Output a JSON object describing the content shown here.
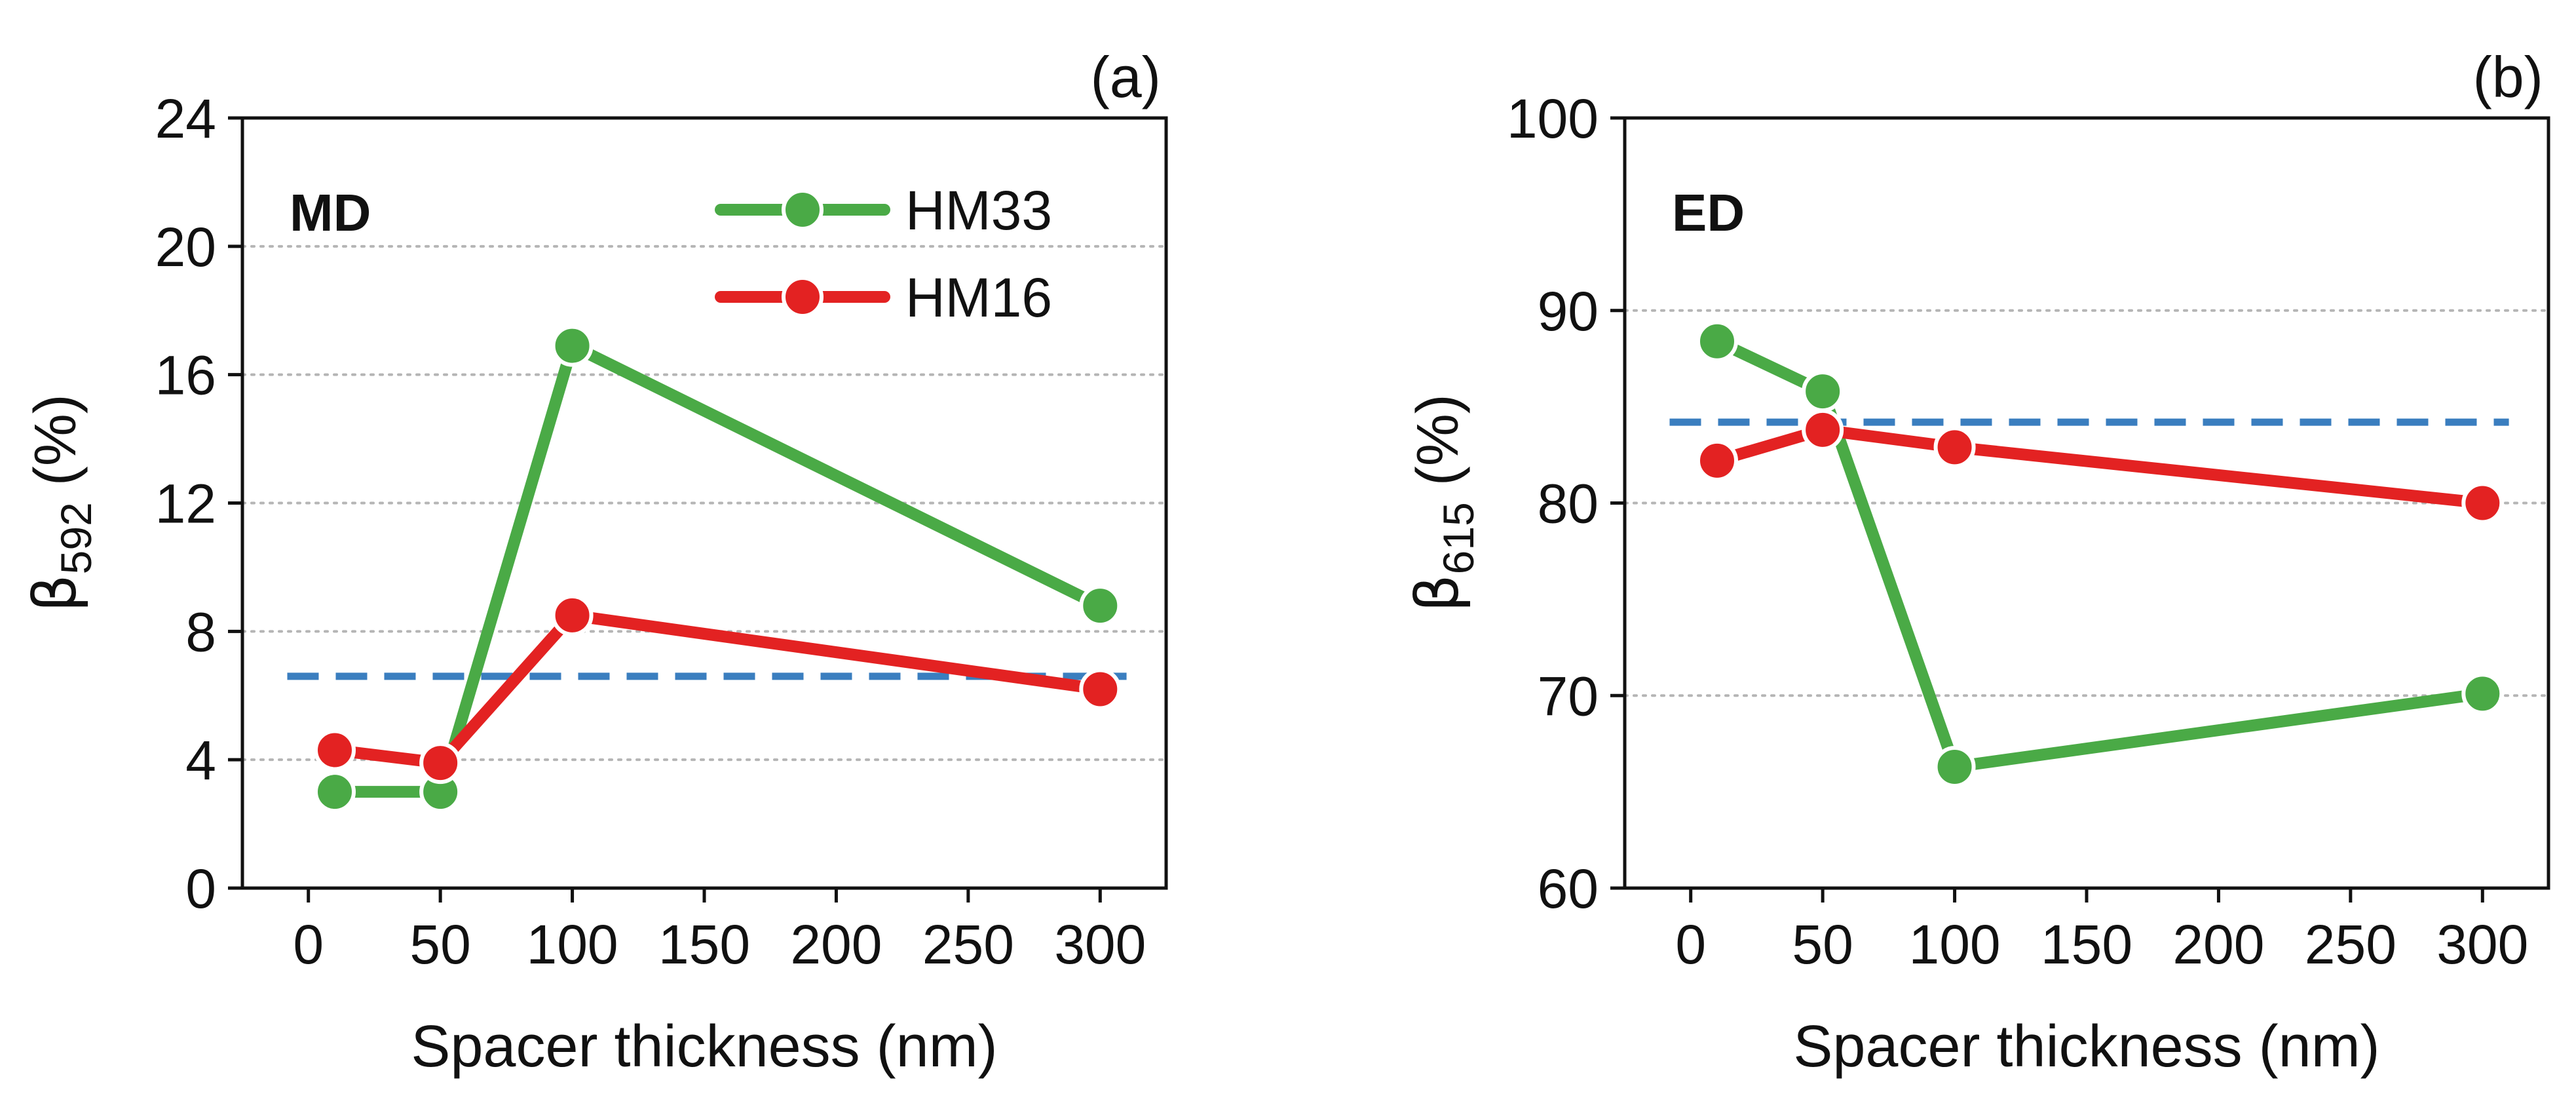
{
  "chart_data": [
    {
      "type": "line",
      "panel_tag": "(a)",
      "inner_label": "MD",
      "xlabel": "Spacer thickness (nm)",
      "ylabel": {
        "symbol": "β",
        "subscript": "592",
        "unit": " (%)"
      },
      "xlim": [
        -25,
        325
      ],
      "ylim": [
        0,
        24
      ],
      "xticks": [
        0,
        50,
        100,
        150,
        200,
        250,
        300
      ],
      "yticks": [
        0,
        4,
        8,
        12,
        16,
        20,
        24
      ],
      "grid": "horizontal dotted",
      "legend_position": "top-right",
      "reference_line": {
        "y": 6.6,
        "style": "dashed",
        "color": "#3a7ebf"
      },
      "series": [
        {
          "name": "HM33",
          "color": "#4aaa46",
          "x": [
            10,
            50,
            100,
            300
          ],
          "y": [
            3.0,
            3.0,
            16.9,
            8.8
          ]
        },
        {
          "name": "HM16",
          "color": "#e32222",
          "x": [
            10,
            50,
            100,
            300
          ],
          "y": [
            4.3,
            3.9,
            8.5,
            6.2
          ]
        }
      ]
    },
    {
      "type": "line",
      "panel_tag": "(b)",
      "inner_label": "ED",
      "xlabel": "Spacer thickness (nm)",
      "ylabel": {
        "symbol": "β",
        "subscript": "615",
        "unit": " (%)"
      },
      "xlim": [
        -25,
        325
      ],
      "ylim": [
        60,
        100
      ],
      "xticks": [
        0,
        50,
        100,
        150,
        200,
        250,
        300
      ],
      "yticks": [
        60,
        70,
        80,
        90,
        100
      ],
      "grid": "horizontal dotted",
      "reference_line": {
        "y": 84.2,
        "style": "dashed",
        "color": "#3a7ebf"
      },
      "series": [
        {
          "name": "HM33",
          "color": "#4aaa46",
          "x": [
            10,
            50,
            100,
            300
          ],
          "y": [
            88.4,
            85.8,
            66.3,
            70.1
          ]
        },
        {
          "name": "HM16",
          "color": "#e32222",
          "x": [
            10,
            50,
            100,
            300
          ],
          "y": [
            82.2,
            83.8,
            82.9,
            80.0
          ]
        }
      ]
    }
  ]
}
